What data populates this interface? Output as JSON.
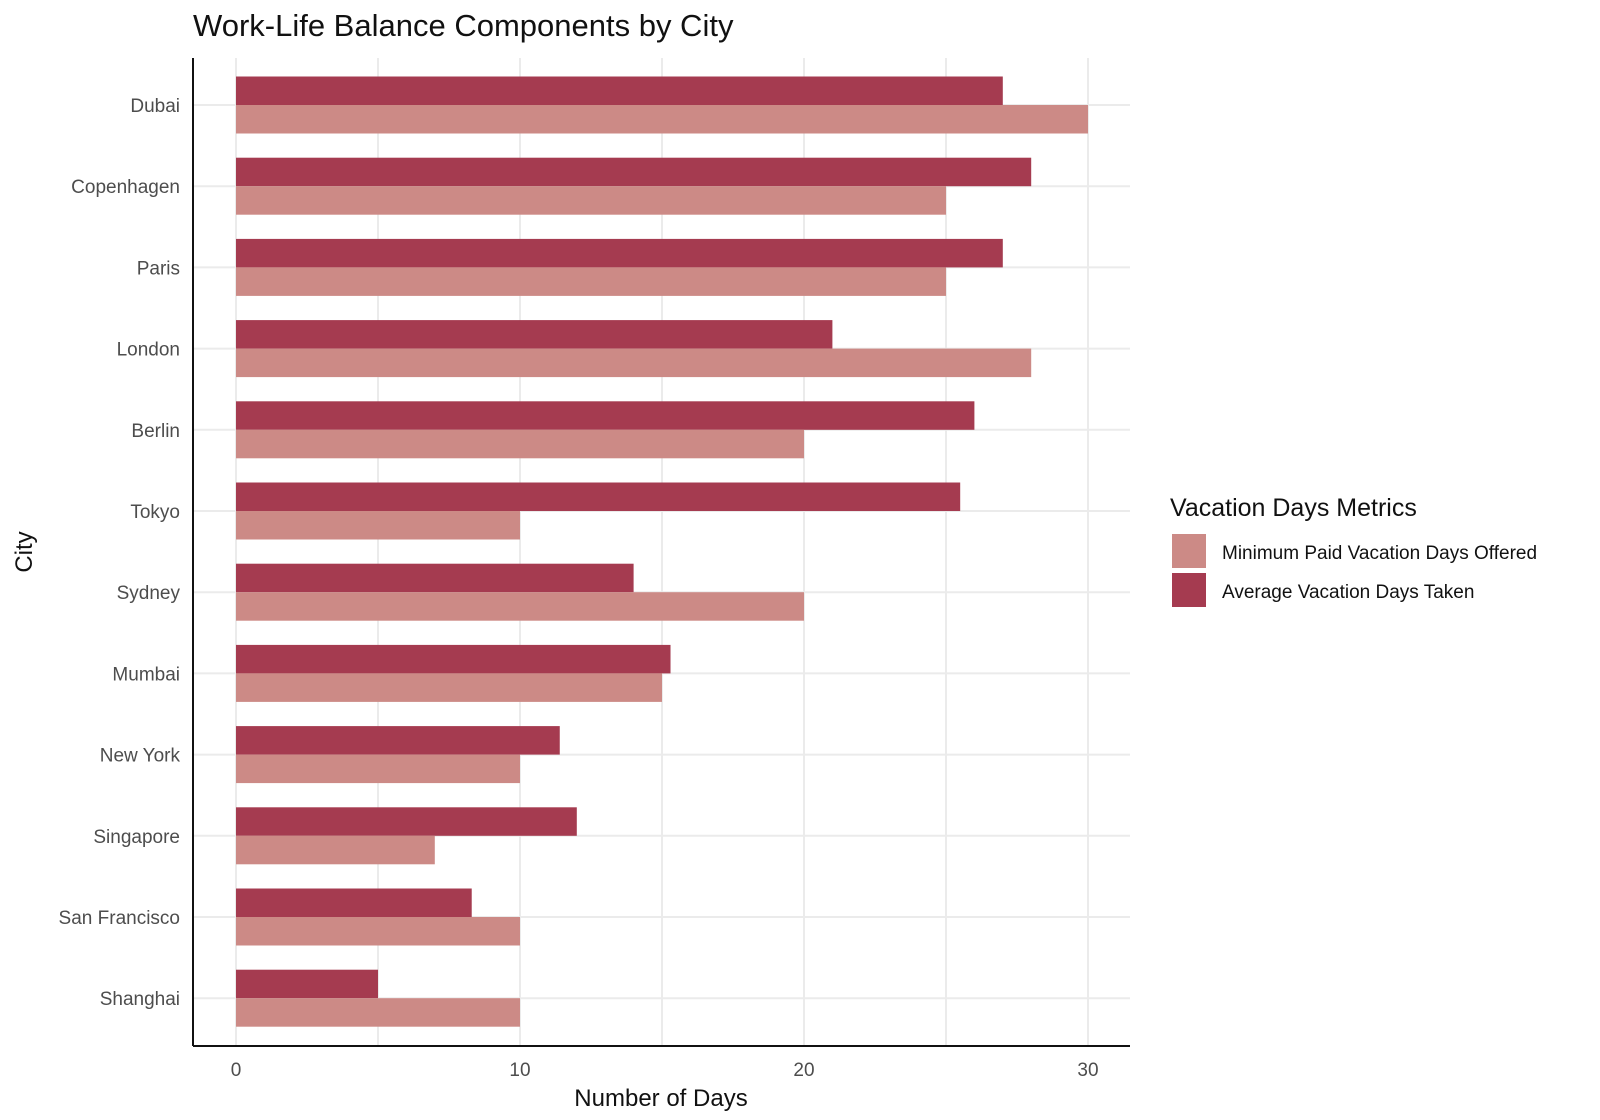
{
  "chart_data": {
    "type": "bar",
    "orientation": "horizontal",
    "title": "Work-Life Balance Components by City",
    "xlabel": "Number of Days",
    "ylabel": "City",
    "xlim": [
      0,
      31.5
    ],
    "x_ticks": [
      0,
      10,
      20,
      30
    ],
    "grid": true,
    "legend_title": "Vacation Days Metrics",
    "legend_position": "right",
    "categories": [
      "Dubai",
      "Copenhagen",
      "Paris",
      "London",
      "Berlin",
      "Tokyo",
      "Sydney",
      "Mumbai",
      "New York",
      "Singapore",
      "San Francisco",
      "Shanghai"
    ],
    "series": [
      {
        "name": "Minimum Paid Vacation Days Offered",
        "color": "#cc8a86",
        "values": [
          30,
          25,
          25,
          28,
          20,
          10,
          20,
          15,
          10,
          7,
          10,
          10
        ]
      },
      {
        "name": "Average Vacation Days Taken",
        "color": "#a53b50",
        "values": [
          27,
          28,
          27,
          21,
          26,
          25.5,
          14,
          15.3,
          11.4,
          12,
          8.3,
          5
        ]
      }
    ]
  }
}
